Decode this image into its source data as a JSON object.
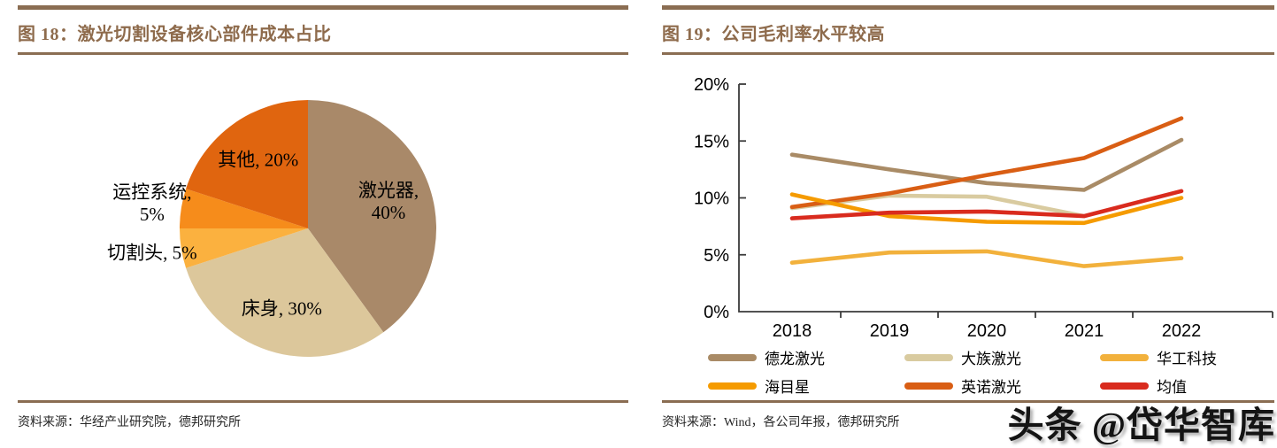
{
  "watermark": "头条 @岱华智库",
  "colors": {
    "rule_brown": "#8a6d52",
    "title_brown": "#8e6b4c",
    "axis": "#3b3b3b",
    "text": "#262626"
  },
  "figures": {
    "fig18": {
      "title": "图 18：激光切割设备核心部件成本占比",
      "source": "资料来源：华经产业研究院，德邦研究所",
      "chart_data": {
        "type": "pie",
        "start_angle_deg": 0,
        "direction": "clockwise",
        "slices": [
          {
            "label": "激光器",
            "value": 40,
            "display": "激光器, 40%",
            "color": "#a98969",
            "label_pos": "inside",
            "wrap": true
          },
          {
            "label": "床身",
            "value": 30,
            "display": "床身, 30%",
            "color": "#dcc79b",
            "label_pos": "inside",
            "wrap": false
          },
          {
            "label": "切割头",
            "value": 5,
            "display": "切割头, 5%",
            "color": "#fbb13f",
            "label_pos": "outside",
            "wrap": false
          },
          {
            "label": "运控系统",
            "value": 5,
            "display": "运控系统, 5%",
            "color": "#f68c1b",
            "label_pos": "outside",
            "wrap": true
          },
          {
            "label": "其他",
            "value": 20,
            "display": "其他, 20%",
            "color": "#e0650f",
            "label_pos": "inside",
            "wrap": false
          }
        ]
      }
    },
    "fig19": {
      "title": "图 19：公司毛利率水平较高",
      "source": "资料来源：Wind，各公司年报，德邦研究所",
      "chart_data": {
        "type": "line",
        "categories": [
          "2018",
          "2019",
          "2020",
          "2021",
          "2022"
        ],
        "ylim": [
          0,
          20
        ],
        "y_tick_labels": [
          "0%",
          "5%",
          "10%",
          "15%",
          "20%"
        ],
        "y_tick_values": [
          0,
          5,
          10,
          15,
          20
        ],
        "grid": false,
        "legend_position": "bottom",
        "series": [
          {
            "name": "德龙激光",
            "color": "#a98b66",
            "values": [
              13.8,
              12.5,
              11.3,
              10.7,
              15.1
            ]
          },
          {
            "name": "大族激光",
            "color": "#d9cba0",
            "values": [
              9.1,
              10.2,
              10.1,
              8.4,
              null
            ]
          },
          {
            "name": "华工科技",
            "color": "#f2b13c",
            "values": [
              4.3,
              5.2,
              5.3,
              4.0,
              4.7
            ]
          },
          {
            "name": "海目星",
            "color": "#f59b00",
            "values": [
              10.3,
              8.4,
              7.9,
              7.8,
              10.0
            ]
          },
          {
            "name": "英诺激光",
            "color": "#d95e14",
            "values": [
              9.2,
              10.4,
              12.0,
              13.5,
              17.0
            ]
          },
          {
            "name": "均值",
            "color": "#d92b1e",
            "values": [
              8.2,
              8.7,
              8.8,
              8.4,
              10.6
            ]
          }
        ],
        "draw_order": [
          1,
          0,
          4,
          3,
          2,
          5
        ]
      }
    }
  }
}
